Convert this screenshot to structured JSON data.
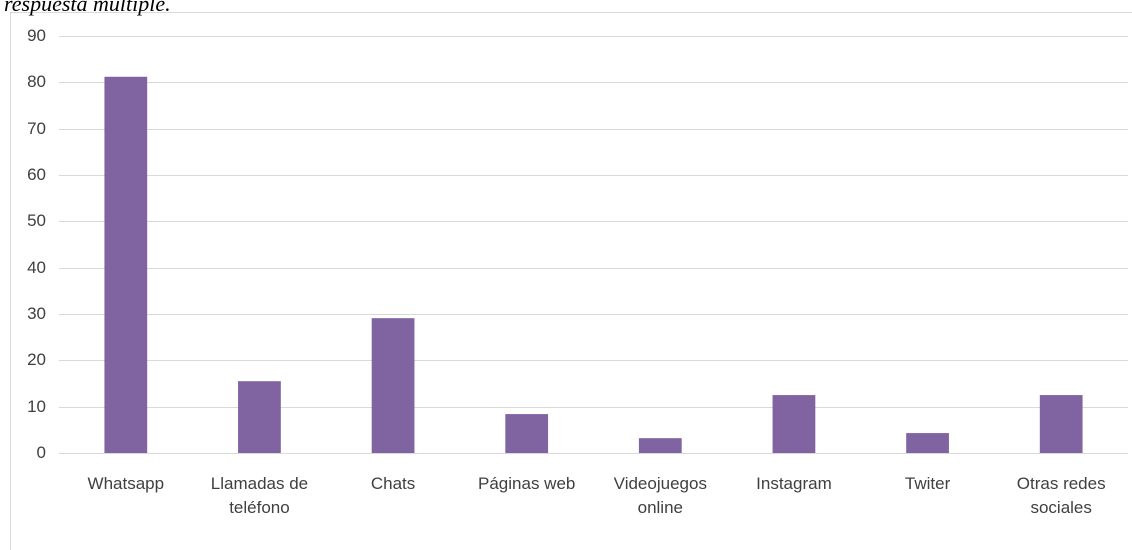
{
  "chart_data": {
    "type": "bar",
    "title": "respuesta múltiple.",
    "categories": [
      "Whatsapp",
      "Llamadas de teléfono",
      "Chats",
      "Páginas web",
      "Videojuegos online",
      "Instagram",
      "Twiter",
      "Otras redes sociales"
    ],
    "values": [
      81.2,
      15.5,
      29.1,
      8.4,
      3.2,
      12.5,
      4.3,
      12.5
    ],
    "color": "#8064a2",
    "ylim": [
      0,
      90
    ],
    "yticks": [
      0,
      10,
      20,
      30,
      40,
      50,
      60,
      70,
      80,
      90
    ],
    "grid": true
  }
}
